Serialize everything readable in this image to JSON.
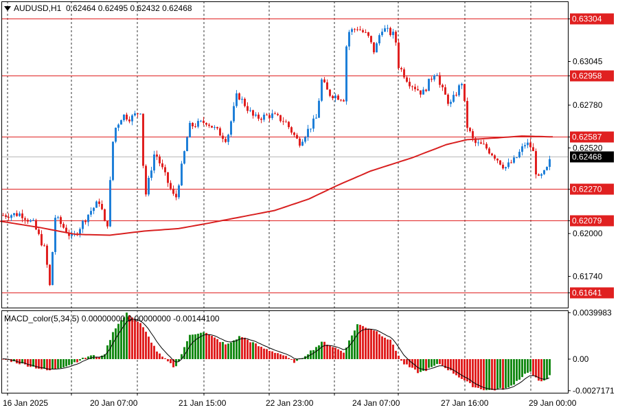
{
  "header": {
    "symbol": "AUDUSD,H1",
    "ohlc": "0.62464 0.62495 0.62432 0.62468"
  },
  "indicator": {
    "title": "MACD_color(5,34,5) 0.00000000 0.00000000 -0.00144100"
  },
  "colors": {
    "bull": "#1e7fd8",
    "bear": "#e02020",
    "ma": "#d82020",
    "level_line": "#e02020",
    "hist_up": "#168a16",
    "hist_down": "#e02020",
    "signal": "#000000",
    "current_price_bg": "#000000"
  },
  "chart_data": {
    "type": "candlestick",
    "price_axis_ticks": [
      "0.63304",
      "0.63045",
      "0.62958",
      "0.62780",
      "0.62587",
      "0.62520",
      "0.62468",
      "0.62270",
      "0.62079",
      "0.62000",
      "0.61740",
      "0.61641"
    ],
    "price_range": [
      0.6155,
      0.6341
    ],
    "horizontal_levels": [
      {
        "label": "0.63304",
        "value": 0.63304
      },
      {
        "label": "0.62958",
        "value": 0.62958
      },
      {
        "label": "0.62587",
        "value": 0.62587
      },
      {
        "label": "0.62270",
        "value": 0.6227
      },
      {
        "label": "0.62079",
        "value": 0.62079
      },
      {
        "label": "0.61641",
        "value": 0.61641
      }
    ],
    "current_price": {
      "label": "0.62468",
      "value": 0.62468
    },
    "plain_ticks": [
      {
        "label": "0.63045",
        "value": 0.63045
      },
      {
        "label": "0.62780",
        "value": 0.6278
      },
      {
        "label": "0.62520",
        "value": 0.6252
      },
      {
        "label": "0.62000",
        "value": 0.62
      },
      {
        "label": "0.61740",
        "value": 0.6174
      }
    ],
    "time_labels": [
      "16 Jan 2025",
      "20 Jan 07:00",
      "21 Jan 15:00",
      "22 Jan 23:00",
      "24 Jan 07:00",
      "27 Jan 16:00",
      "29 Jan 00:00"
    ],
    "macd_axis_ticks": [
      "0.0039983",
      "0.00",
      "-0.0027171"
    ],
    "macd_range": [
      -0.0029,
      0.0042
    ]
  }
}
